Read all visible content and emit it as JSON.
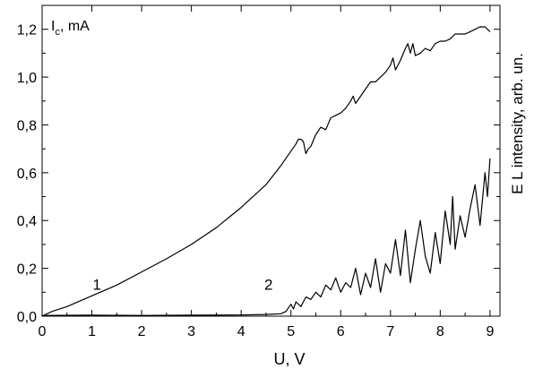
{
  "chart_data": {
    "type": "line",
    "xlabel": "U, V",
    "ylabel": "I",
    "ylabel_sub": "c",
    "ylabel_unit": ", mA",
    "y2label": "E L intensity, arb. un.",
    "xlim": [
      0,
      9.2
    ],
    "ylim": [
      0,
      1.3
    ],
    "x_ticks": [
      0,
      1,
      2,
      3,
      4,
      5,
      6,
      7,
      8,
      9
    ],
    "x_tick_labels": [
      "0",
      "1",
      "2",
      "3",
      "4",
      "5",
      "6",
      "7",
      "8",
      "9"
    ],
    "y_ticks": [
      0,
      0.2,
      0.4,
      0.6,
      0.8,
      1.0,
      1.2
    ],
    "y_tick_labels": [
      "0,0",
      "0,2",
      "0,4",
      "0,6",
      "0,8",
      "1,0",
      "1,2"
    ],
    "grid": false,
    "line_color": "#000000",
    "series": [
      {
        "name": "1",
        "label_at": [
          1.1,
          0.11
        ],
        "x": [
          0,
          0.2,
          0.5,
          1.0,
          1.5,
          2.0,
          2.5,
          3.0,
          3.5,
          4.0,
          4.5,
          4.8,
          5.0,
          5.1,
          5.15,
          5.2,
          5.25,
          5.3,
          5.35,
          5.4,
          5.5,
          5.6,
          5.7,
          5.8,
          5.9,
          6.0,
          6.1,
          6.2,
          6.25,
          6.3,
          6.4,
          6.5,
          6.6,
          6.7,
          6.8,
          6.9,
          7.0,
          7.05,
          7.1,
          7.2,
          7.3,
          7.35,
          7.4,
          7.45,
          7.5,
          7.6,
          7.7,
          7.8,
          7.9,
          8.0,
          8.1,
          8.2,
          8.3,
          8.4,
          8.5,
          8.6,
          8.7,
          8.8,
          8.9,
          9.0
        ],
        "y": [
          0.0,
          0.02,
          0.04,
          0.085,
          0.13,
          0.185,
          0.24,
          0.3,
          0.37,
          0.455,
          0.55,
          0.63,
          0.69,
          0.72,
          0.74,
          0.74,
          0.73,
          0.68,
          0.7,
          0.71,
          0.76,
          0.79,
          0.78,
          0.83,
          0.84,
          0.85,
          0.87,
          0.9,
          0.92,
          0.89,
          0.92,
          0.95,
          0.98,
          0.98,
          1.0,
          1.02,
          1.05,
          1.08,
          1.03,
          1.07,
          1.12,
          1.14,
          1.1,
          1.14,
          1.09,
          1.1,
          1.12,
          1.11,
          1.14,
          1.15,
          1.15,
          1.16,
          1.18,
          1.18,
          1.18,
          1.19,
          1.2,
          1.21,
          1.21,
          1.19
        ]
      },
      {
        "name": "2",
        "label_at": [
          4.55,
          0.11
        ],
        "x": [
          0,
          1.0,
          2.0,
          3.0,
          4.0,
          4.5,
          4.8,
          4.9,
          5.0,
          5.05,
          5.1,
          5.2,
          5.3,
          5.4,
          5.5,
          5.6,
          5.7,
          5.8,
          5.9,
          6.0,
          6.1,
          6.2,
          6.3,
          6.4,
          6.5,
          6.6,
          6.7,
          6.8,
          6.9,
          7.0,
          7.1,
          7.2,
          7.3,
          7.4,
          7.5,
          7.6,
          7.7,
          7.8,
          7.9,
          8.0,
          8.1,
          8.2,
          8.25,
          8.3,
          8.4,
          8.5,
          8.6,
          8.7,
          8.8,
          8.9,
          8.95,
          9.0
        ],
        "y": [
          0.003,
          0.004,
          0.003,
          0.004,
          0.005,
          0.007,
          0.01,
          0.02,
          0.05,
          0.03,
          0.06,
          0.04,
          0.08,
          0.07,
          0.1,
          0.08,
          0.13,
          0.11,
          0.16,
          0.1,
          0.14,
          0.12,
          0.2,
          0.09,
          0.18,
          0.12,
          0.24,
          0.1,
          0.22,
          0.18,
          0.32,
          0.17,
          0.36,
          0.14,
          0.28,
          0.4,
          0.25,
          0.18,
          0.35,
          0.22,
          0.44,
          0.3,
          0.5,
          0.28,
          0.42,
          0.33,
          0.45,
          0.55,
          0.38,
          0.6,
          0.5,
          0.66
        ]
      }
    ]
  }
}
